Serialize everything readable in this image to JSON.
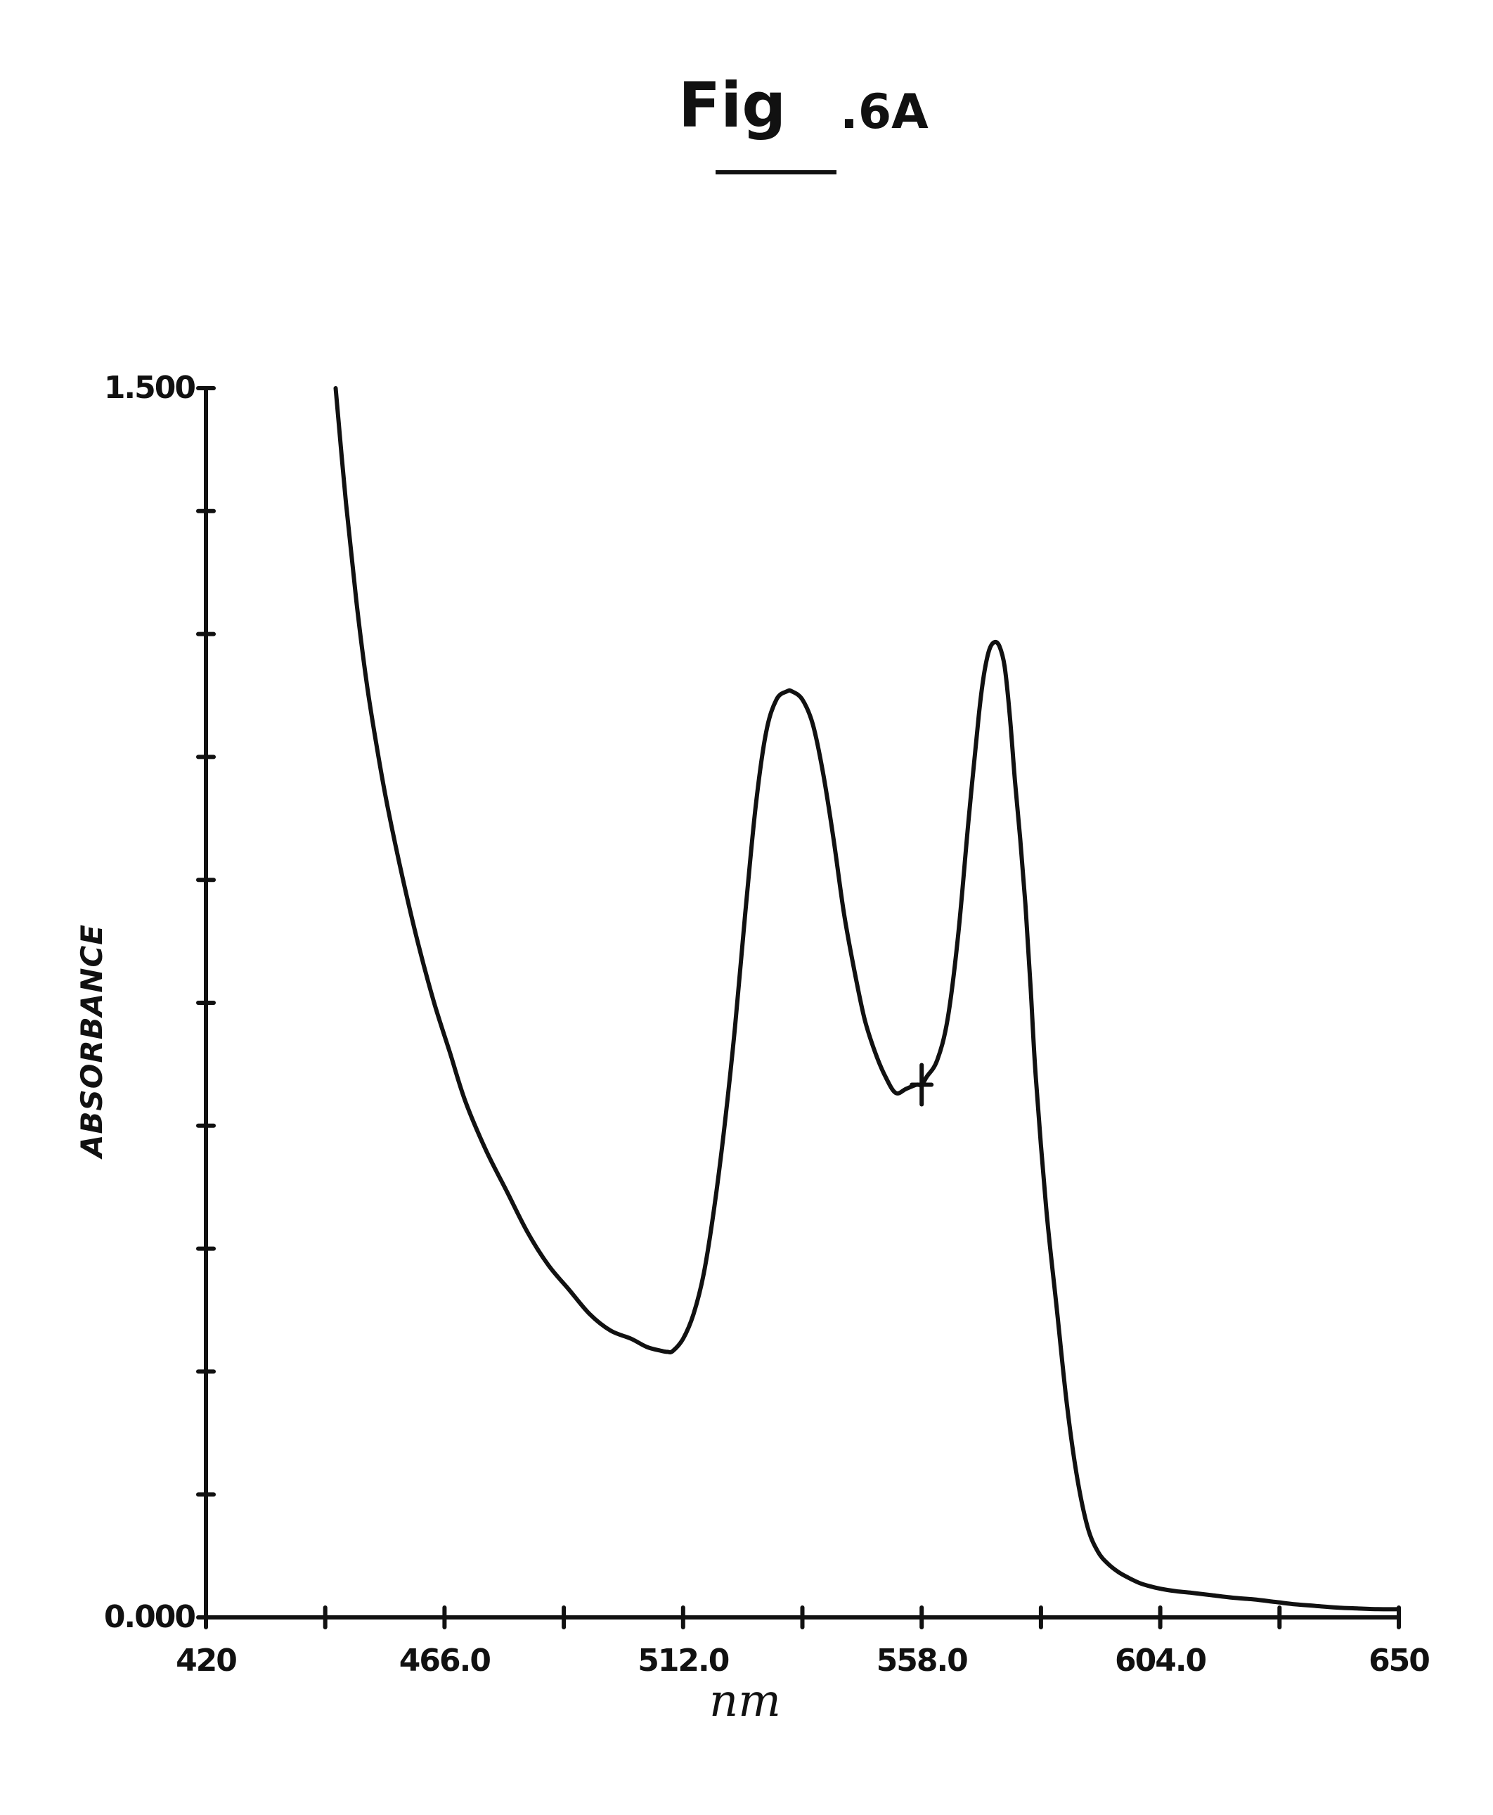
{
  "figure": {
    "title_main": "Fig",
    "title_suffix": ".6A"
  },
  "chart_data": {
    "type": "line",
    "title": "Fig.6A",
    "xlabel": "nm",
    "ylabel": "ABSORBANCE",
    "xlim": [
      420,
      650
    ],
    "ylim": [
      0.0,
      1.5
    ],
    "x_tick_values": [
      420,
      443,
      466,
      489,
      512,
      535,
      558,
      581,
      604,
      627,
      650
    ],
    "x_tick_labels": [
      {
        "value": 420,
        "label": "420"
      },
      {
        "value": 466,
        "label": "466.0"
      },
      {
        "value": 512,
        "label": "512.0"
      },
      {
        "value": 558,
        "label": "558.0"
      },
      {
        "value": 604,
        "label": "604.0"
      },
      {
        "value": 650,
        "label": "650"
      }
    ],
    "y_tick_values": [
      0.0,
      0.15,
      0.3,
      0.45,
      0.6,
      0.75,
      0.9,
      1.05,
      1.2,
      1.35,
      1.5
    ],
    "y_tick_labels": [
      {
        "value": 0.0,
        "label": "0.000"
      },
      {
        "value": 1.5,
        "label": "1.500"
      }
    ],
    "grid": false,
    "marker": {
      "x": 558.0,
      "y": 0.65
    },
    "series": [
      {
        "x": [
          445,
          447,
          449,
          451,
          453,
          455,
          458,
          461,
          464,
          467,
          470,
          474,
          478,
          482,
          486,
          490,
          494,
          498,
          502,
          505,
          508,
          509,
          510,
          512,
          514,
          516,
          518,
          520,
          522,
          524,
          526,
          528,
          530,
          532,
          533,
          535,
          537,
          539,
          541,
          543,
          545,
          547,
          549,
          551,
          553,
          555,
          557,
          558,
          559,
          561,
          563,
          565,
          567,
          569,
          570,
          571,
          572,
          573,
          574,
          575,
          576,
          577,
          578,
          579,
          580,
          582,
          584,
          586,
          588,
          590,
          592,
          594,
          596,
          598,
          600,
          602,
          604,
          607,
          610,
          614,
          618,
          622,
          626,
          630,
          634,
          638,
          642,
          646,
          650
        ],
        "y": [
          1.5,
          1.36,
          1.24,
          1.14,
          1.06,
          0.99,
          0.9,
          0.82,
          0.75,
          0.69,
          0.63,
          0.57,
          0.52,
          0.47,
          0.43,
          0.4,
          0.37,
          0.35,
          0.34,
          0.33,
          0.325,
          0.324,
          0.325,
          0.34,
          0.37,
          0.42,
          0.5,
          0.6,
          0.72,
          0.86,
          0.99,
          1.08,
          1.12,
          1.13,
          1.13,
          1.12,
          1.09,
          1.03,
          0.95,
          0.86,
          0.79,
          0.73,
          0.69,
          0.66,
          0.64,
          0.645,
          0.65,
          0.65,
          0.66,
          0.68,
          0.73,
          0.83,
          0.97,
          1.1,
          1.15,
          1.18,
          1.19,
          1.185,
          1.16,
          1.1,
          1.02,
          0.95,
          0.87,
          0.77,
          0.66,
          0.5,
          0.38,
          0.26,
          0.17,
          0.11,
          0.08,
          0.065,
          0.055,
          0.048,
          0.042,
          0.038,
          0.035,
          0.032,
          0.03,
          0.027,
          0.024,
          0.022,
          0.019,
          0.016,
          0.014,
          0.012,
          0.011,
          0.01,
          0.01
        ]
      }
    ]
  }
}
